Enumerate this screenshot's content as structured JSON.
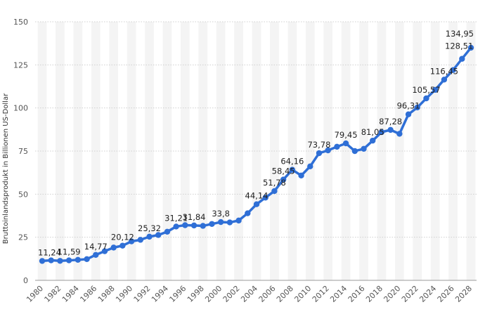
{
  "chart_data": {
    "type": "line",
    "ylabel": "Bruttoinlandsprodukt in Billionen US-Dollar",
    "xlabel": "",
    "ylim": [
      0,
      150
    ],
    "yticks": [
      0,
      25,
      50,
      75,
      100,
      125,
      150
    ],
    "grid": true,
    "x": [
      1980,
      1981,
      1982,
      1983,
      1984,
      1985,
      1986,
      1987,
      1988,
      1989,
      1990,
      1991,
      1992,
      1993,
      1994,
      1995,
      1996,
      1997,
      1998,
      1999,
      2000,
      2001,
      2002,
      2003,
      2004,
      2005,
      2006,
      2007,
      2008,
      2009,
      2010,
      2011,
      2012,
      2013,
      2014,
      2015,
      2016,
      2017,
      2018,
      2019,
      2020,
      2021,
      2022,
      2023,
      2024,
      2025,
      2026,
      2027,
      2028
    ],
    "xticks": [
      "1980",
      "1982",
      "1984",
      "1986",
      "1988",
      "1990",
      "1992",
      "1994",
      "1996",
      "1998",
      "2000",
      "2002",
      "2004",
      "2006",
      "2008",
      "2010",
      "2012",
      "2014",
      "2016",
      "2018",
      "2020",
      "2022",
      "2024",
      "2026",
      "2028"
    ],
    "series": [
      {
        "color": "#2f6fd6",
        "values": [
          11.24,
          11.6,
          11.3,
          11.59,
          11.9,
          12.3,
          14.77,
          16.9,
          19.0,
          20.12,
          22.6,
          23.5,
          25.32,
          26.3,
          28.2,
          31.21,
          32.0,
          31.84,
          31.6,
          32.7,
          33.8,
          33.6,
          34.7,
          38.9,
          44.14,
          48.0,
          51.78,
          58.45,
          64.16,
          60.8,
          66.1,
          73.78,
          75.4,
          77.5,
          79.45,
          75.0,
          76.3,
          81.05,
          86.0,
          87.28,
          85.0,
          96.31,
          100.3,
          105.57,
          110.5,
          116.45,
          122.0,
          128.51,
          134.95
        ]
      }
    ],
    "data_labels": [
      {
        "x": 1980,
        "text": "11,24"
      },
      {
        "x": 1983,
        "text": "11,59"
      },
      {
        "x": 1986,
        "text": "14,77"
      },
      {
        "x": 1989,
        "text": "20,12"
      },
      {
        "x": 1992,
        "text": "25,32"
      },
      {
        "x": 1995,
        "text": "31,21"
      },
      {
        "x": 1997,
        "text": "31,84"
      },
      {
        "x": 2000,
        "text": "33,8"
      },
      {
        "x": 2004,
        "text": "44,14"
      },
      {
        "x": 2006,
        "text": "51,78"
      },
      {
        "x": 2007,
        "text": "58,45"
      },
      {
        "x": 2008,
        "text": "64,16"
      },
      {
        "x": 2011,
        "text": "73,78"
      },
      {
        "x": 2014,
        "text": "79,45"
      },
      {
        "x": 2017,
        "text": "81,05"
      },
      {
        "x": 2019,
        "text": "87,28"
      },
      {
        "x": 2021,
        "text": "96,31"
      },
      {
        "x": 2023,
        "text": "105,57"
      },
      {
        "x": 2025,
        "text": "116,45"
      },
      {
        "x": 2027,
        "text": "128,51"
      },
      {
        "x": 2028,
        "text": "134,95"
      }
    ]
  }
}
